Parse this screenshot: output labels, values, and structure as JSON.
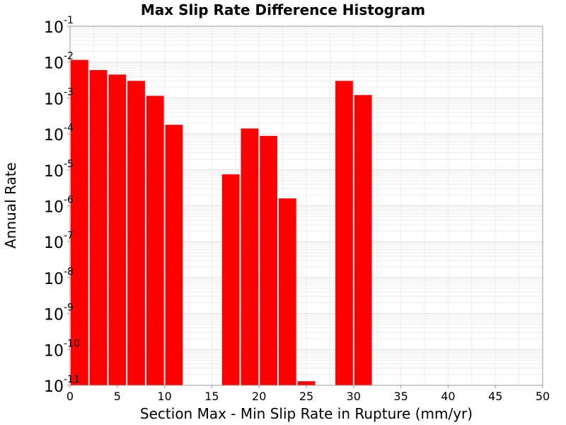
{
  "chart_data": {
    "type": "bar",
    "title": "Max Slip Rate Difference Histogram",
    "xlabel": "Section Max - Min Slip Rate in Rupture (mm/yr)",
    "ylabel": "Annual Rate",
    "xlim": [
      0,
      50
    ],
    "ylim": [
      1e-11,
      0.1
    ],
    "y_scale": "log",
    "grid": true,
    "bar_color": "#ff0000",
    "x_ticks": [
      "0",
      "5",
      "10",
      "15",
      "20",
      "25",
      "30",
      "35",
      "40",
      "45",
      "50"
    ],
    "y_ticks": [
      {
        "base": "10",
        "exp": "-1"
      },
      {
        "base": "10",
        "exp": "-2"
      },
      {
        "base": "10",
        "exp": "-3"
      },
      {
        "base": "10",
        "exp": "-4"
      },
      {
        "base": "10",
        "exp": "-5"
      },
      {
        "base": "10",
        "exp": "-6"
      },
      {
        "base": "10",
        "exp": "-7"
      },
      {
        "base": "10",
        "exp": "-8"
      },
      {
        "base": "10",
        "exp": "-9"
      },
      {
        "base": "10",
        "exp": "-10"
      },
      {
        "base": "10",
        "exp": "-11"
      }
    ],
    "bars": [
      {
        "x0": 0,
        "x1": 2,
        "value": 0.0115
      },
      {
        "x0": 2,
        "x1": 4,
        "value": 0.006
      },
      {
        "x0": 4,
        "x1": 6,
        "value": 0.0045
      },
      {
        "x0": 6,
        "x1": 8,
        "value": 0.003
      },
      {
        "x0": 8,
        "x1": 10,
        "value": 0.00115
      },
      {
        "x0": 10,
        "x1": 12,
        "value": 0.00018
      },
      {
        "x0": 16,
        "x1": 18,
        "value": 7.5e-06
      },
      {
        "x0": 18,
        "x1": 20,
        "value": 0.000142
      },
      {
        "x0": 20,
        "x1": 22,
        "value": 8.8e-05
      },
      {
        "x0": 22,
        "x1": 24,
        "value": 1.6e-06
      },
      {
        "x0": 24,
        "x1": 26,
        "value": 1.3e-11
      },
      {
        "x0": 28,
        "x1": 30,
        "value": 0.003
      },
      {
        "x0": 30,
        "x1": 32,
        "value": 0.00121
      }
    ]
  }
}
